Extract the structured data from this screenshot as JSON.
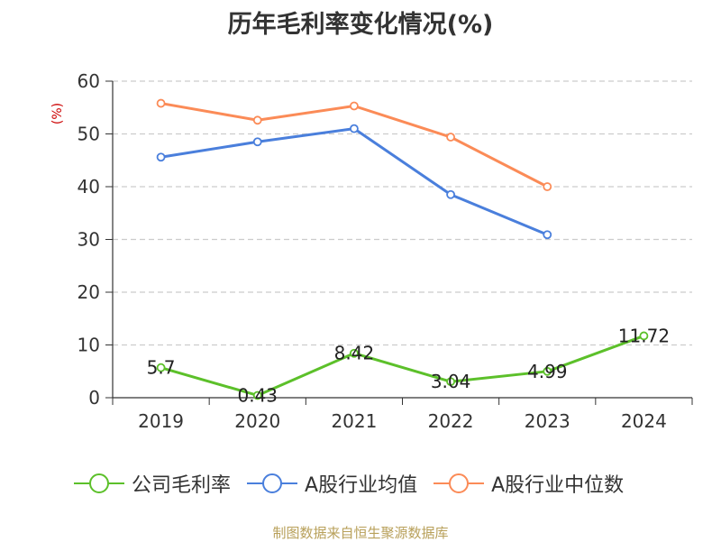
{
  "title": "历年毛利率变化情况(%)",
  "source": "制图数据来自恒生聚源数据库",
  "colors": {
    "company": "#5cc02a",
    "avg": "#4a7fdc",
    "median": "#fb8b57",
    "grid": "#cccccc",
    "axis": "#333333",
    "unit": "#cc0000"
  },
  "chart_data": {
    "type": "line",
    "title": "历年毛利率变化情况(%)",
    "ylabel": "(%)",
    "ylim": [
      0,
      60
    ],
    "yticks": [
      0,
      10,
      20,
      30,
      40,
      50,
      60
    ],
    "categories": [
      "2019",
      "2020",
      "2021",
      "2022",
      "2023",
      "2024"
    ],
    "grid": true,
    "legend_position": "bottom",
    "series": [
      {
        "name": "公司毛利率",
        "values": [
          5.7,
          0.43,
          8.42,
          3.04,
          4.99,
          11.72
        ],
        "labels": [
          "5.7",
          "0.43",
          "8.42",
          "3.04",
          "4.99",
          "11.72"
        ],
        "color": "#5cc02a"
      },
      {
        "name": "A股行业均值",
        "values": [
          45.6,
          48.5,
          51.0,
          38.5,
          30.9,
          null
        ],
        "color": "#4a7fdc"
      },
      {
        "name": "A股行业中位数",
        "values": [
          55.8,
          52.6,
          55.3,
          49.4,
          40.0,
          null
        ],
        "color": "#fb8b57"
      }
    ]
  }
}
